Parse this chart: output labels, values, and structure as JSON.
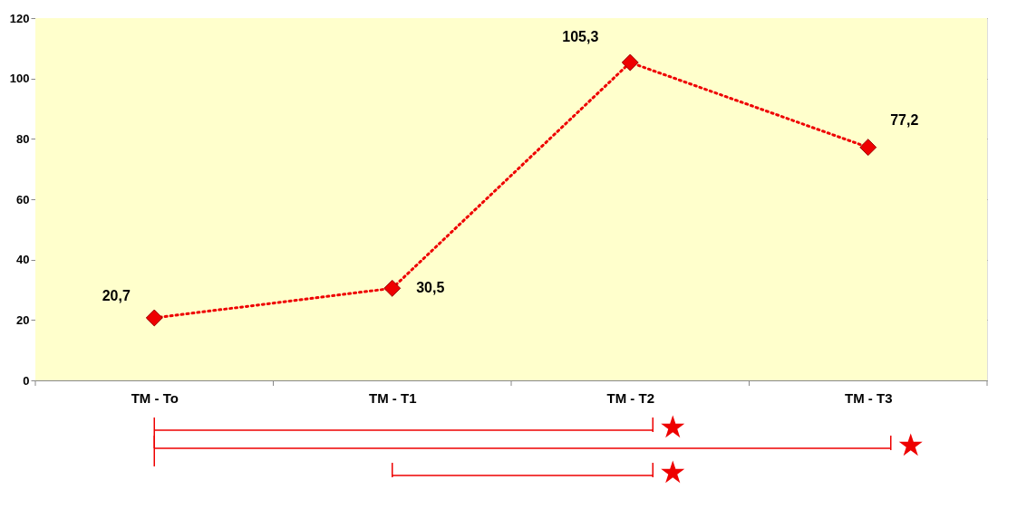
{
  "chart_data": {
    "type": "line",
    "categories": [
      "TM - To",
      "TM - T1",
      "TM - T2",
      "TM - T3"
    ],
    "series": [
      {
        "color": "#ee0000",
        "values": [
          20.7,
          30.5,
          105.3,
          77.2
        ],
        "value_labels": [
          "20,7",
          "30,5",
          "105,3",
          "77,2"
        ]
      }
    ],
    "ylim": [
      0,
      120
    ],
    "yticks": [
      0,
      20,
      40,
      60,
      80,
      100,
      120
    ],
    "grid": "y",
    "marker": "diamond",
    "line_style": "dotted",
    "annotations": [
      "★",
      "★",
      "★"
    ]
  }
}
